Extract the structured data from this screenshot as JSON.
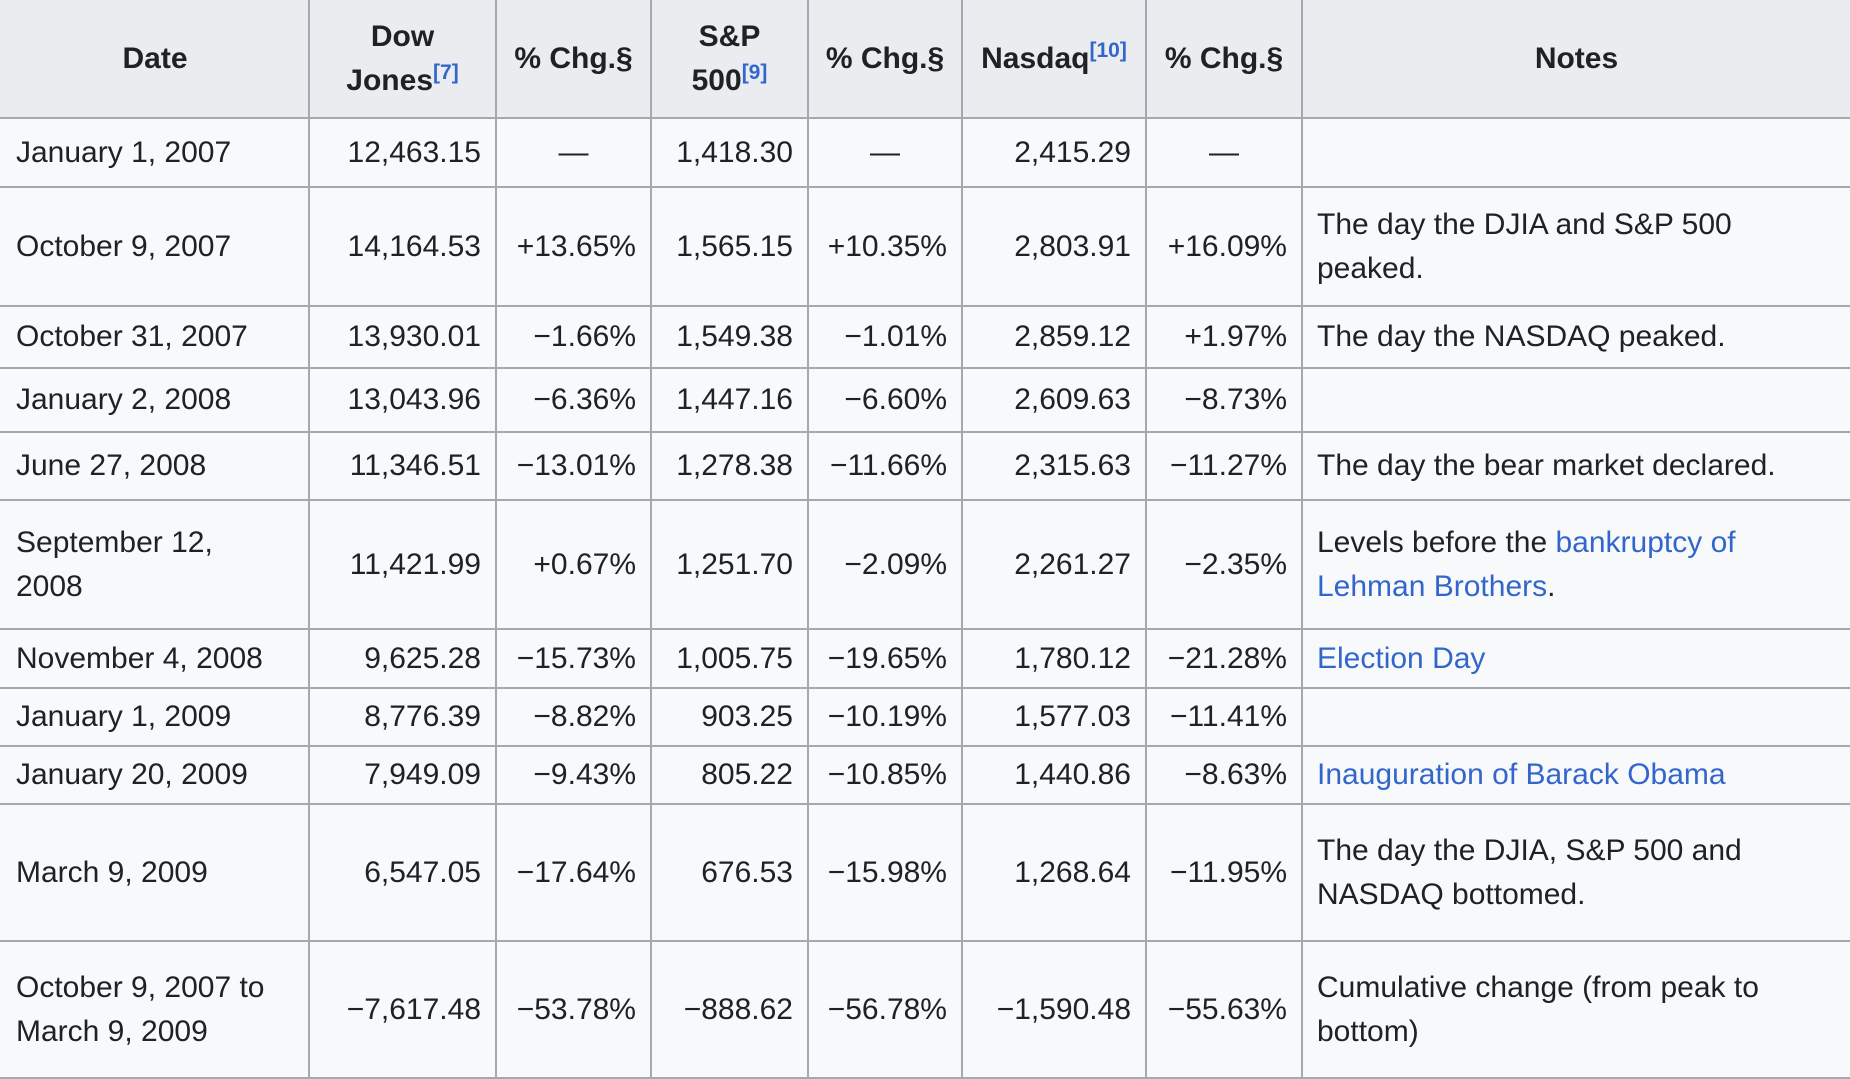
{
  "colors": {
    "link": "#3366cc",
    "header_bg": "#eaecf0",
    "row_bg": "#f8f9fa",
    "border": "#a2a9b1",
    "text": "#202122"
  },
  "table": {
    "columns": [
      {
        "label": "Date"
      },
      {
        "label": "Dow Jones",
        "ref": "[7]"
      },
      {
        "label": "% Chg.§"
      },
      {
        "label": "S&P 500",
        "ref": "[9]"
      },
      {
        "label": "% Chg.§"
      },
      {
        "label": "Nasdaq",
        "ref": "[10]"
      },
      {
        "label": "% Chg.§"
      },
      {
        "label": "Notes"
      }
    ],
    "rows": [
      {
        "date": "January 1, 2007",
        "dow": "12,463.15",
        "dow_chg": "—",
        "sp500": "1,418.30",
        "sp500_chg": "—",
        "nasdaq": "2,415.29",
        "nasdaq_chg": "—",
        "note": []
      },
      {
        "date": "October 9, 2007",
        "dow": "14,164.53",
        "dow_chg": "+13.65%",
        "sp500": "1,565.15",
        "sp500_chg": "+10.35%",
        "nasdaq": "2,803.91",
        "nasdaq_chg": "+16.09%",
        "note": [
          {
            "t": "The day the DJIA and S&P 500 peaked.",
            "link": false
          }
        ]
      },
      {
        "date": "October 31, 2007",
        "dow": "13,930.01",
        "dow_chg": "−1.66%",
        "sp500": "1,549.38",
        "sp500_chg": "−1.01%",
        "nasdaq": "2,859.12",
        "nasdaq_chg": "+1.97%",
        "note": [
          {
            "t": "The day the NASDAQ peaked.",
            "link": false
          }
        ]
      },
      {
        "date": "January 2, 2008",
        "dow": "13,043.96",
        "dow_chg": "−6.36%",
        "sp500": "1,447.16",
        "sp500_chg": "−6.60%",
        "nasdaq": "2,609.63",
        "nasdaq_chg": "−8.73%",
        "note": []
      },
      {
        "date": "June 27, 2008",
        "dow": "11,346.51",
        "dow_chg": "−13.01%",
        "sp500": "1,278.38",
        "sp500_chg": "−11.66%",
        "nasdaq": "2,315.63",
        "nasdaq_chg": "−11.27%",
        "note": [
          {
            "t": "The day the bear market declared.",
            "link": false
          }
        ]
      },
      {
        "date": [
          "September 12,",
          "2008"
        ],
        "dow": "11,421.99",
        "dow_chg": "+0.67%",
        "sp500": "1,251.70",
        "sp500_chg": "−2.09%",
        "nasdaq": "2,261.27",
        "nasdaq_chg": "−2.35%",
        "note": [
          {
            "t": "Levels before the ",
            "link": false
          },
          {
            "t": "bankruptcy of Lehman Brothers",
            "link": true
          },
          {
            "t": ".",
            "link": false
          }
        ]
      },
      {
        "date": "November 4, 2008",
        "dow": "9,625.28",
        "dow_chg": "−15.73%",
        "sp500": "1,005.75",
        "sp500_chg": "−19.65%",
        "nasdaq": "1,780.12",
        "nasdaq_chg": "−21.28%",
        "note": [
          {
            "t": "Election Day",
            "link": true
          }
        ]
      },
      {
        "date": "January 1, 2009",
        "dow": "8,776.39",
        "dow_chg": "−8.82%",
        "sp500": "903.25",
        "sp500_chg": "−10.19%",
        "nasdaq": "1,577.03",
        "nasdaq_chg": "−11.41%",
        "note": []
      },
      {
        "date": "January 20, 2009",
        "dow": "7,949.09",
        "dow_chg": "−9.43%",
        "sp500": "805.22",
        "sp500_chg": "−10.85%",
        "nasdaq": "1,440.86",
        "nasdaq_chg": "−8.63%",
        "note": [
          {
            "t": "Inauguration of Barack Obama",
            "link": true
          }
        ]
      },
      {
        "date": "March 9, 2009",
        "dow": "6,547.05",
        "dow_chg": "−17.64%",
        "sp500": "676.53",
        "sp500_chg": "−15.98%",
        "nasdaq": "1,268.64",
        "nasdaq_chg": "−11.95%",
        "note": [
          {
            "t": "The day the DJIA, S&P 500 and NASDAQ bottomed.",
            "link": false
          }
        ]
      },
      {
        "date": [
          "October 9, 2007 to",
          "March 9, 2009"
        ],
        "dow": "−7,617.48",
        "dow_chg": "−53.78%",
        "sp500": "−888.62",
        "sp500_chg": "−56.78%",
        "nasdaq": "−1,590.48",
        "nasdaq_chg": "−55.63%",
        "note": [
          {
            "t": "Cumulative change (from peak to bottom)",
            "link": false
          }
        ]
      }
    ]
  }
}
